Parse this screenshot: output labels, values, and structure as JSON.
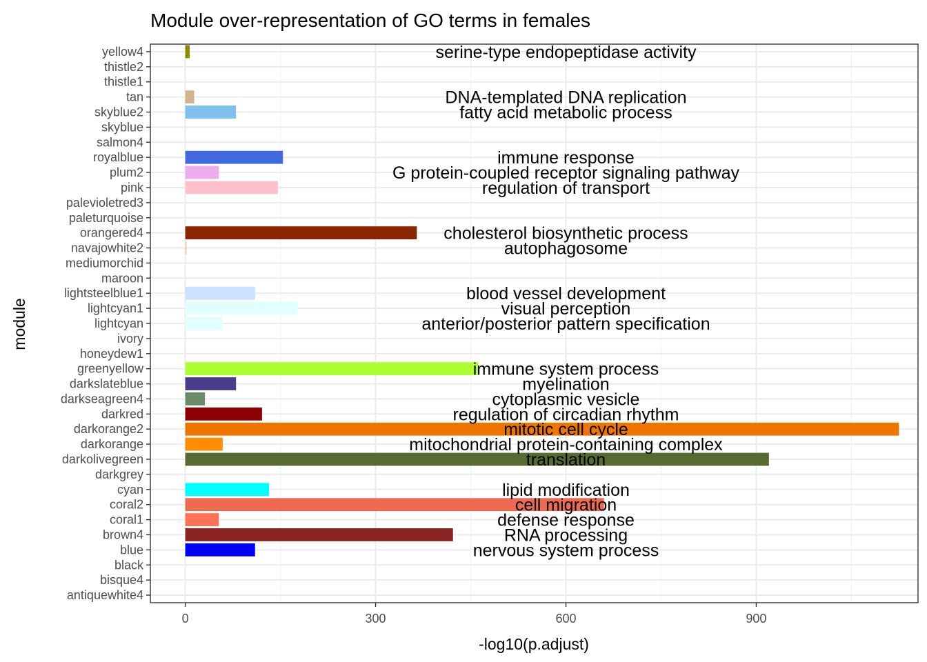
{
  "chart_data": {
    "type": "bar",
    "orientation": "horizontal",
    "title": "Module over-representation of GO terms in females",
    "xlabel": "-log10(p.adjust)",
    "ylabel": "module",
    "xlim": [
      -55,
      1155
    ],
    "xticks": [
      0,
      300,
      600,
      900
    ],
    "xtick_labels": [
      "0",
      "300",
      "600",
      "900"
    ],
    "grid": true,
    "theme": "bw",
    "label_x": 600,
    "categories": [
      "antiquewhite4",
      "bisque4",
      "black",
      "blue",
      "brown4",
      "coral1",
      "coral2",
      "cyan",
      "darkgrey",
      "darkolivegreen",
      "darkorange",
      "darkorange2",
      "darkred",
      "darkseagreen4",
      "darkslateblue",
      "greenyellow",
      "honeydew1",
      "ivory",
      "lightcyan",
      "lightcyan1",
      "lightsteelblue1",
      "maroon",
      "mediumorchid",
      "navajowhite2",
      "orangered4",
      "paleturquoise",
      "palevioletred3",
      "pink",
      "plum2",
      "royalblue",
      "salmon4",
      "skyblue",
      "skyblue2",
      "tan",
      "thistle1",
      "thistle2",
      "yellow4"
    ],
    "values": [
      null,
      null,
      null,
      110,
      422,
      53,
      660,
      132,
      null,
      920,
      59,
      1125,
      121,
      31,
      80,
      462,
      null,
      null,
      58,
      177,
      110,
      null,
      null,
      2,
      365,
      null,
      null,
      146,
      53,
      154,
      null,
      null,
      80,
      14,
      null,
      null,
      7
    ],
    "terms": [
      "",
      "",
      "",
      "nervous system process",
      "RNA processing",
      "defense response",
      "cell migration",
      "lipid modification",
      "",
      "translation",
      "mitochondrial protein-containing complex",
      "mitotic cell cycle",
      "regulation of circadian rhythm",
      "cytoplasmic vesicle",
      "myelination",
      "immune system process",
      "",
      "",
      "anterior/posterior pattern specification",
      "visual perception",
      "blood vessel development",
      "",
      "",
      "autophagosome",
      "cholesterol biosynthetic process",
      "",
      "",
      "regulation of transport",
      "G protein-coupled receptor signaling pathway",
      "immune response",
      "",
      "",
      "fatty acid metabolic process",
      "DNA-templated DNA replication",
      "",
      "",
      "serine-type endopeptidase activity"
    ],
    "colors": [
      "#8B8378",
      "#8B7D6B",
      "#000000",
      "#0000FF",
      "#8B2323",
      "#FF7256",
      "#EE6A50",
      "#00FFFF",
      "#A9A9A9",
      "#556B2F",
      "#FF8C00",
      "#EE7600",
      "#8B0000",
      "#698B69",
      "#483D8B",
      "#ADFF2F",
      "#F0FFF0",
      "#FFFFF0",
      "#E0FFFF",
      "#E0FFFF",
      "#CAE1FF",
      "#B03060",
      "#BA55D3",
      "#EECFA1",
      "#8B2500",
      "#AFEEEE",
      "#CD6889",
      "#FFC0CB",
      "#EEAEEE",
      "#4169E1",
      "#8B4C39",
      "#87CEEB",
      "#7EC0EE",
      "#D2B48C",
      "#FFE1FF",
      "#EED2EE",
      "#8B8B00"
    ]
  }
}
